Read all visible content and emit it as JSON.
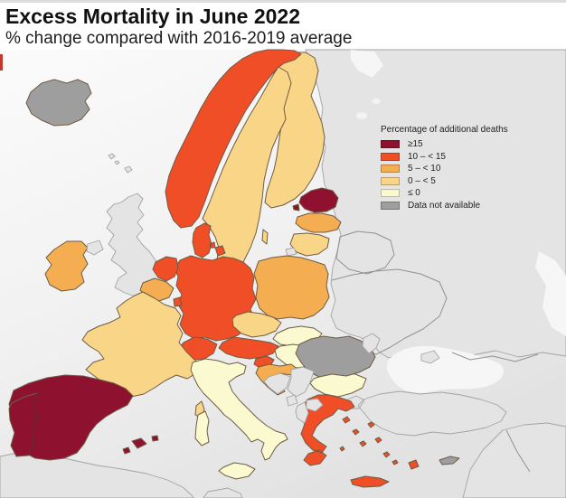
{
  "header": {
    "title": "Excess Mortality in June 2022",
    "subtitle": "% change compared with 2016-2019 average"
  },
  "legend": {
    "title": "Percentage of additional deaths",
    "items": [
      {
        "label": "≥15",
        "color": "#8e1230"
      },
      {
        "label": "10 – < 15",
        "color": "#f04e27"
      },
      {
        "label": "5 – < 10",
        "color": "#f5ad52"
      },
      {
        "label": "0 – < 5",
        "color": "#f9d687"
      },
      {
        "label": "≤ 0",
        "color": "#fbf9d0"
      },
      {
        "label": "Data not available",
        "color": "#9e9e9e"
      }
    ]
  },
  "chart_data": {
    "type": "choropleth",
    "region": "Europe",
    "title": "Excess Mortality in June 2022",
    "subtitle": "% change compared with 2016-2019 average",
    "unit": "% additional deaths compared with 2016-2019 average",
    "categories": [
      "≥15",
      "10 – < 15",
      "5 – < 10",
      "0 – < 5",
      "≤ 0",
      "Data not available"
    ],
    "countries": [
      {
        "name": "Spain",
        "category": "≥15"
      },
      {
        "name": "Portugal",
        "category": "≥15"
      },
      {
        "name": "Estonia",
        "category": "≥15"
      },
      {
        "name": "Norway",
        "category": "10 – < 15"
      },
      {
        "name": "Denmark",
        "category": "10 – < 15"
      },
      {
        "name": "Netherlands",
        "category": "10 – < 15"
      },
      {
        "name": "Luxembourg",
        "category": "10 – < 15"
      },
      {
        "name": "Germany",
        "category": "10 – < 15"
      },
      {
        "name": "Switzerland",
        "category": "10 – < 15"
      },
      {
        "name": "Austria",
        "category": "10 – < 15"
      },
      {
        "name": "Slovenia",
        "category": "10 – < 15"
      },
      {
        "name": "Greece",
        "category": "10 – < 15"
      },
      {
        "name": "Ireland",
        "category": "5 – < 10"
      },
      {
        "name": "Belgium",
        "category": "5 – < 10"
      },
      {
        "name": "Poland",
        "category": "5 – < 10"
      },
      {
        "name": "Latvia",
        "category": "5 – < 10"
      },
      {
        "name": "Croatia",
        "category": "5 – < 10"
      },
      {
        "name": "France",
        "category": "0 – < 5"
      },
      {
        "name": "Sweden",
        "category": "0 – < 5"
      },
      {
        "name": "Finland",
        "category": "0 – < 5"
      },
      {
        "name": "Lithuania",
        "category": "0 – < 5"
      },
      {
        "name": "Czechia",
        "category": "0 – < 5"
      },
      {
        "name": "Italy",
        "category": "≤ 0"
      },
      {
        "name": "Slovakia",
        "category": "≤ 0"
      },
      {
        "name": "Hungary",
        "category": "≤ 0"
      },
      {
        "name": "Bulgaria",
        "category": "≤ 0"
      },
      {
        "name": "Iceland",
        "category": "Data not available"
      },
      {
        "name": "Romania",
        "category": "Data not available"
      },
      {
        "name": "Cyprus",
        "category": "Data not available"
      }
    ],
    "background_regions": [
      "United Kingdom",
      "Ukraine",
      "Belarus",
      "Russia",
      "Moldova",
      "Serbia",
      "Bosnia and Herzegovina",
      "Montenegro",
      "Albania",
      "North Macedonia",
      "Turkey",
      "Middle East",
      "North Africa",
      "Kaliningrad"
    ],
    "layout": {
      "legend_position": "upper right",
      "map_colors": {
        "sea_top": "#fbfbfb",
        "sea_bottom": "#e2e2e2",
        "non_data_land": "#e4e4e4",
        "country_border": "#6e5b44"
      }
    }
  }
}
